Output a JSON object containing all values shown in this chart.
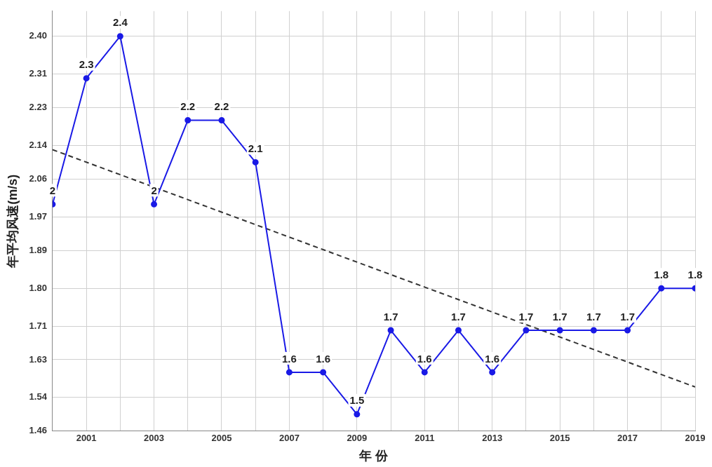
{
  "chart_data": {
    "type": "line",
    "xlabel": "年 份",
    "ylabel": "年平均风速(m/s)",
    "x": [
      2000,
      2001,
      2002,
      2003,
      2004,
      2005,
      2006,
      2007,
      2008,
      2009,
      2010,
      2011,
      2012,
      2013,
      2014,
      2015,
      2016,
      2017,
      2018,
      2019
    ],
    "series": [
      {
        "color": "#1a1ae6",
        "marker": "circle",
        "line_style": "solid",
        "values": [
          2,
          2.3,
          2.4,
          2,
          2.2,
          2.2,
          2.1,
          1.6,
          1.6,
          1.5,
          1.7,
          1.6,
          1.7,
          1.6,
          1.7,
          1.7,
          1.7,
          1.7,
          1.8,
          1.8
        ],
        "value_labels": [
          "2",
          "2.3",
          "2.4",
          "2",
          "2.2",
          "2.2",
          "2.1",
          "1.6",
          "1.6",
          "1.5",
          "1.7",
          "1.6",
          "1.7",
          "1.6",
          "1.7",
          "1.7",
          "1.7",
          "1.7",
          "1.8",
          "1.8"
        ]
      },
      {
        "type": "line",
        "color": "#333333",
        "marker": "none",
        "line_style": "dashed",
        "x": [
          2000,
          2019
        ],
        "values": [
          2.13,
          1.565
        ]
      }
    ],
    "xlim": [
      2000,
      2019
    ],
    "xticks": [
      {
        "value": 2000,
        "label": null
      },
      2001,
      {
        "value": 2002,
        "label": null
      },
      2003,
      {
        "value": 2004,
        "label": null
      },
      2005,
      {
        "value": 2006,
        "label": null
      },
      2007,
      {
        "value": 2008,
        "label": null
      },
      2009,
      {
        "value": 2010,
        "label": null
      },
      2011,
      {
        "value": 2012,
        "label": null
      },
      2013,
      {
        "value": 2014,
        "label": null
      },
      2015,
      {
        "value": 2016,
        "label": null
      },
      2017,
      {
        "value": 2018,
        "label": null
      },
      2019
    ],
    "ylim": [
      1.46,
      2.46
    ],
    "yticks": [
      {
        "value": 1.46,
        "label": "1.46"
      },
      {
        "value": 1.54,
        "label": "1.54"
      },
      {
        "value": 1.63,
        "label": "1.63"
      },
      {
        "value": 1.71,
        "label": "1.71"
      },
      {
        "value": 1.8,
        "label": "1.80"
      },
      {
        "value": 1.89,
        "label": "1.89"
      },
      {
        "value": 1.97,
        "label": "1.97"
      },
      {
        "value": 2.06,
        "label": "2.06"
      },
      {
        "value": 2.14,
        "label": "2.14"
      },
      {
        "value": 2.23,
        "label": "2.23"
      },
      {
        "value": 2.31,
        "label": "2.31"
      },
      {
        "value": 2.4,
        "label": "2.40"
      }
    ],
    "grid": true,
    "legend": false
  }
}
